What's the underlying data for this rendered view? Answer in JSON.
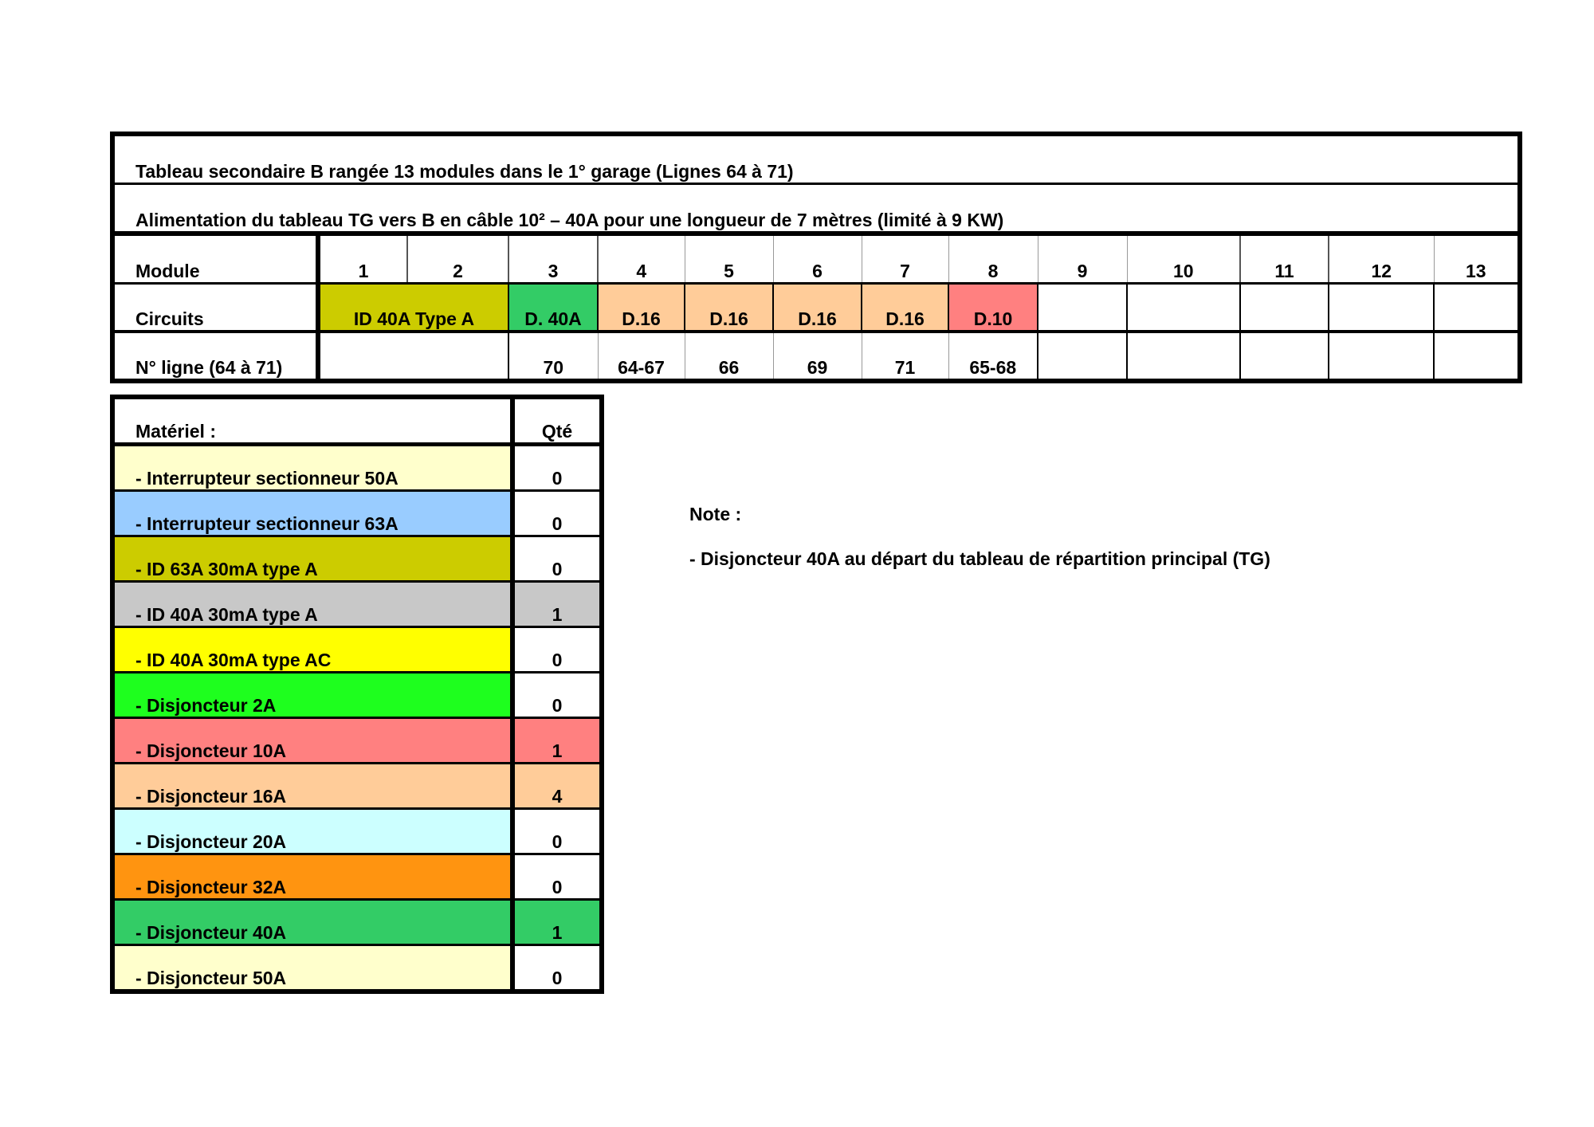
{
  "top_table": {
    "title": "Tableau secondaire B rangée 13 modules dans le 1° garage (Lignes 64 à 71)",
    "feed": "Alimentation du tableau TG vers B en câble 10² – 40A pour une longueur de 7 mètres (limité à 9 KW)",
    "row_labels": {
      "module": "Module",
      "circuits": "Circuits",
      "ligne": "N° ligne (64 à 71)"
    },
    "modules": [
      "1",
      "2",
      "3",
      "4",
      "5",
      "6",
      "7",
      "8",
      "9",
      "10",
      "11",
      "12",
      "13"
    ],
    "circuits": [
      {
        "label": "ID 40A Type A",
        "span": 2,
        "color": "#cccc00"
      },
      {
        "label": "D. 40A",
        "span": 1,
        "color": "#33cc66"
      },
      {
        "label": "D.16",
        "span": 1,
        "color": "#ffcc99"
      },
      {
        "label": "D.16",
        "span": 1,
        "color": "#ffcc99"
      },
      {
        "label": "D.16",
        "span": 1,
        "color": "#ffcc99"
      },
      {
        "label": "D.16",
        "span": 1,
        "color": "#ffcc99"
      },
      {
        "label": "D.10",
        "span": 1,
        "color": "#ff8080"
      },
      {
        "label": "",
        "span": 1,
        "color": "#ffffff"
      },
      {
        "label": "",
        "span": 1,
        "color": "#ffffff"
      },
      {
        "label": "",
        "span": 1,
        "color": "#ffffff"
      },
      {
        "label": "",
        "span": 1,
        "color": "#ffffff"
      },
      {
        "label": "",
        "span": 1,
        "color": "#ffffff"
      }
    ],
    "lignes": [
      {
        "label": "",
        "span": 2
      },
      {
        "label": "70",
        "span": 1
      },
      {
        "label": "64-67",
        "span": 1
      },
      {
        "label": "66",
        "span": 1
      },
      {
        "label": "69",
        "span": 1
      },
      {
        "label": "71",
        "span": 1
      },
      {
        "label": "65-68",
        "span": 1
      },
      {
        "label": "",
        "span": 1
      },
      {
        "label": "",
        "span": 1
      },
      {
        "label": "",
        "span": 1
      },
      {
        "label": "",
        "span": 1
      },
      {
        "label": "",
        "span": 1
      }
    ]
  },
  "materiel": {
    "header": {
      "name": "Matériel :",
      "qty": "Qté"
    },
    "items": [
      {
        "name": "- Interrupteur sectionneur 50A",
        "qty": "0",
        "color": "#ffffcc",
        "qty_color": "#ffffff"
      },
      {
        "name": "- Interrupteur sectionneur 63A",
        "qty": "0",
        "color": "#99ccff",
        "qty_color": "#ffffff"
      },
      {
        "name": "- ID 63A 30mA type A",
        "qty": "0",
        "color": "#cccc00",
        "qty_color": "#ffffff"
      },
      {
        "name": "- ID 40A 30mA type A",
        "qty": "1",
        "color": "#c8c8c8",
        "qty_color": "#c8c8c8"
      },
      {
        "name": "- ID 40A 30mA type AC",
        "qty": "0",
        "color": "#ffff00",
        "qty_color": "#ffffff"
      },
      {
        "name": "- Disjoncteur 2A",
        "qty": "0",
        "color": "#1eff1e",
        "qty_color": "#ffffff"
      },
      {
        "name": "- Disjoncteur 10A",
        "qty": "1",
        "color": "#ff8080",
        "qty_color": "#ff8080"
      },
      {
        "name": "- Disjoncteur 16A",
        "qty": "4",
        "color": "#ffcc99",
        "qty_color": "#ffcc99"
      },
      {
        "name": "- Disjoncteur 20A",
        "qty": "0",
        "color": "#ccffff",
        "qty_color": "#ffffff"
      },
      {
        "name": "- Disjoncteur 32A",
        "qty": "0",
        "color": "#ff9410",
        "qty_color": "#ffffff"
      },
      {
        "name": "- Disjoncteur 40A",
        "qty": "1",
        "color": "#33cc66",
        "qty_color": "#33cc66"
      },
      {
        "name": "- Disjoncteur 50A",
        "qty": "0",
        "color": "#ffffcc",
        "qty_color": "#ffffff"
      }
    ]
  },
  "note": {
    "title": "Note :",
    "text": "- Disjoncteur 40A au départ du tableau de répartition principal (TG)"
  }
}
